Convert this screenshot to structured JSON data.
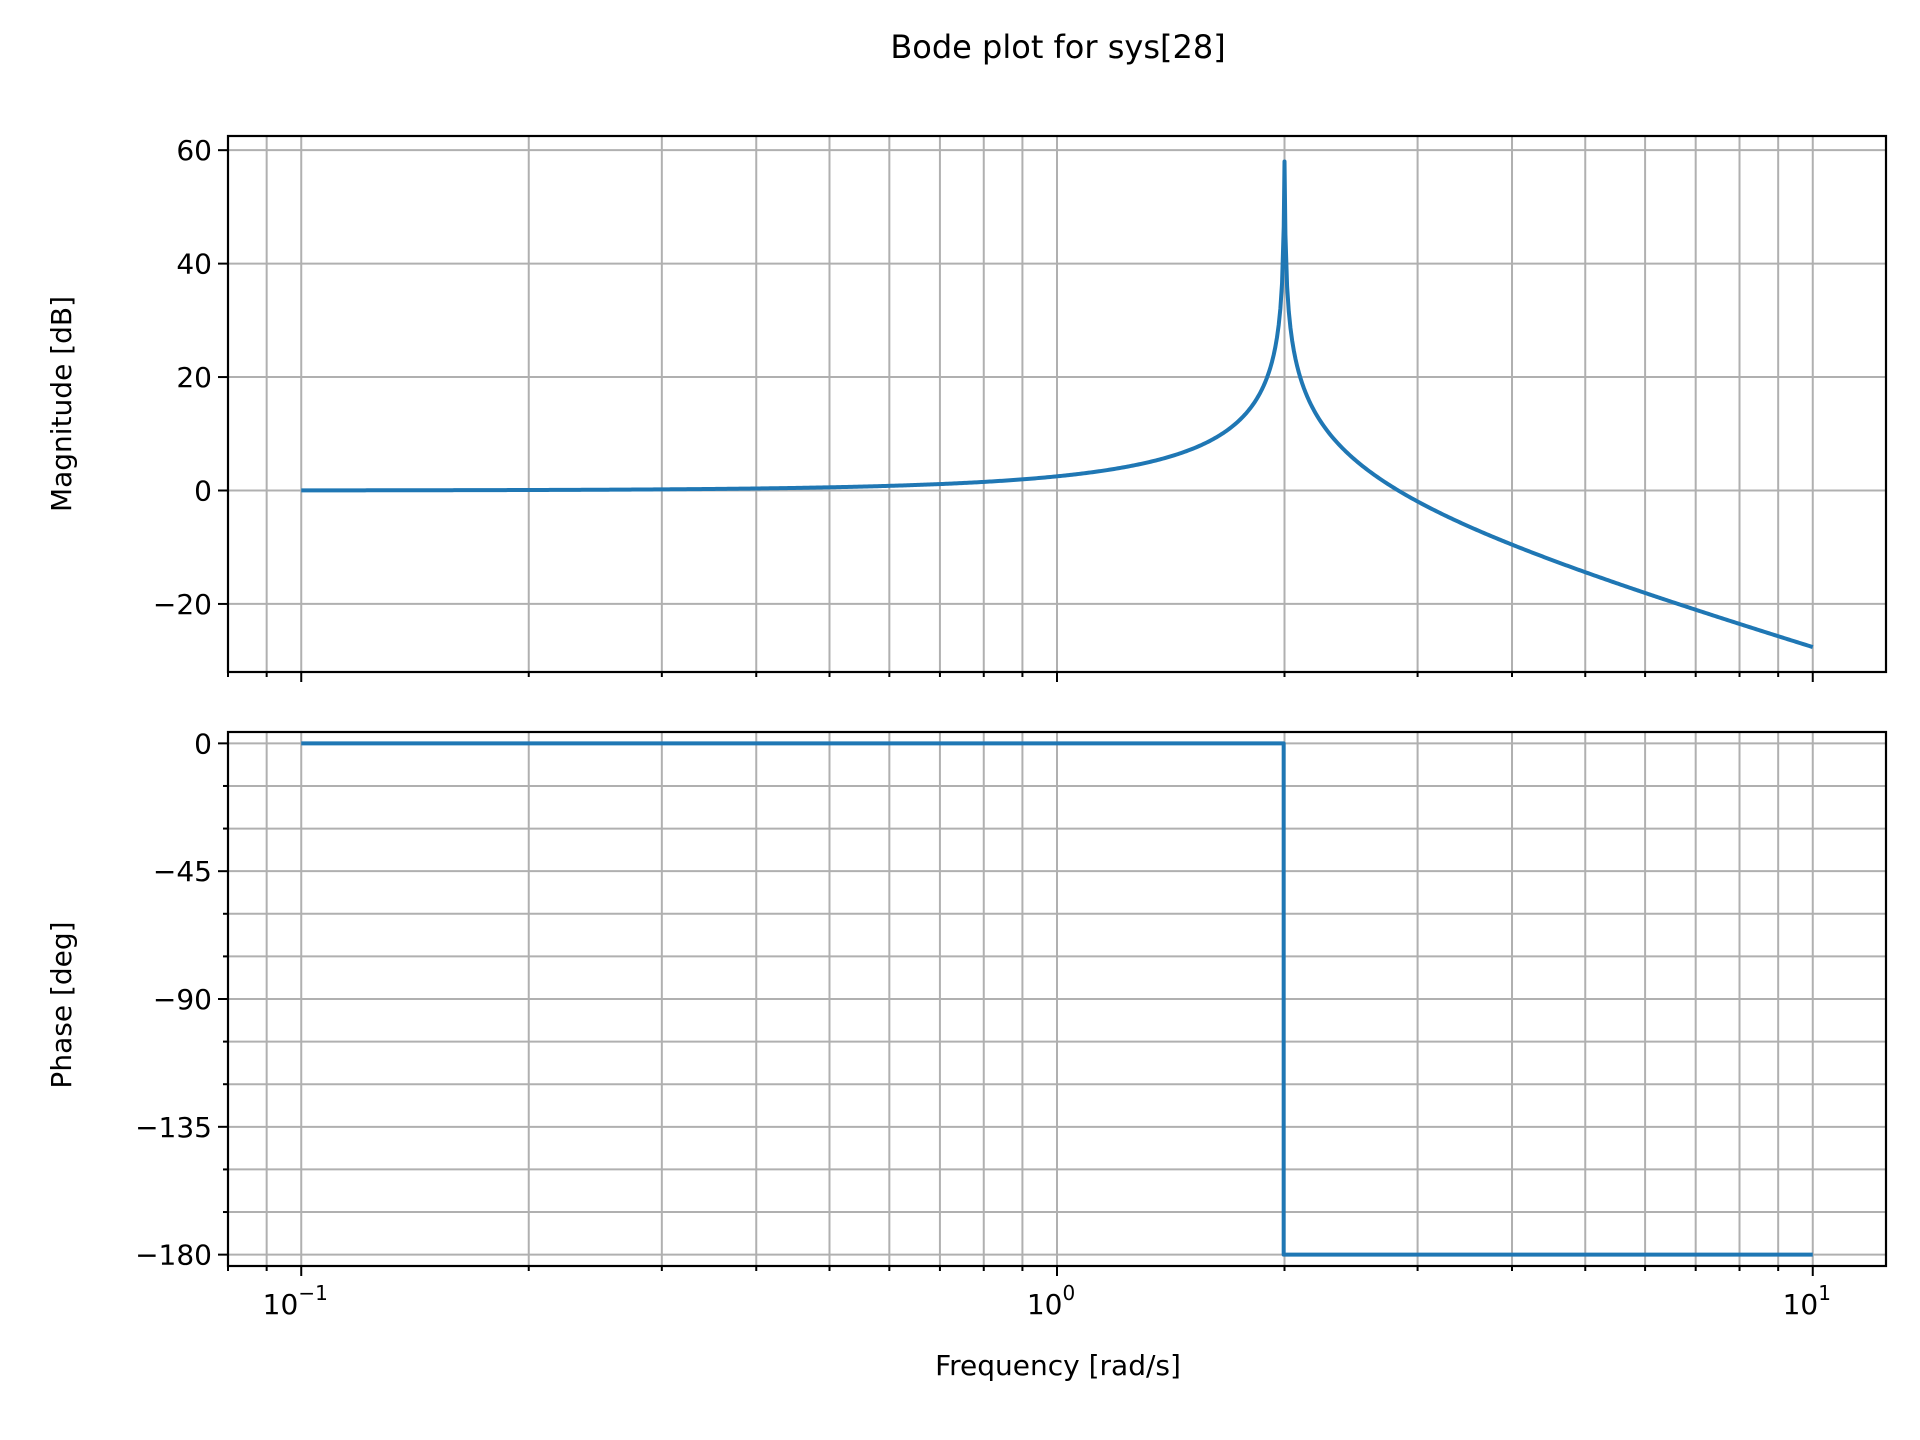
{
  "chart_data": {
    "type": "line",
    "title": "Bode plot for sys[28]",
    "xlabel": "Frequency [rad/s]",
    "xscale": "log",
    "xlim": [
      0.08,
      12.5
    ],
    "x_tick_labels": [
      {
        "value": 0.1,
        "base": "10",
        "exp": "−1"
      },
      {
        "value": 1,
        "base": "10",
        "exp": "0"
      },
      {
        "value": 10,
        "base": "10",
        "exp": "1"
      }
    ],
    "grid": true,
    "series_color": "#1f77b4",
    "subplots": [
      {
        "name": "magnitude",
        "ylabel": "Magnitude [dB]",
        "ylim": [
          -32,
          62.5
        ],
        "y_ticks": [
          60,
          40,
          20,
          0,
          -20
        ],
        "y_tick_labels": [
          "60",
          "40",
          "20",
          "0",
          "−20"
        ],
        "curve": "2nd-order resonance, natural frequency 2 rad/s, peak about 58 dB, 0 dB at 0.1, about -28 dB at 10",
        "points": [
          [
            0.1,
            0.02
          ],
          [
            0.2,
            0.09
          ],
          [
            0.3,
            0.2
          ],
          [
            0.5,
            0.56
          ],
          [
            0.7,
            1.14
          ],
          [
            1.0,
            2.5
          ],
          [
            1.3,
            4.6
          ],
          [
            1.5,
            6.2
          ],
          [
            1.7,
            9.3
          ],
          [
            1.8,
            11.4
          ],
          [
            1.9,
            17.1
          ],
          [
            1.95,
            22.0
          ],
          [
            1.98,
            29.9
          ],
          [
            2.0,
            58.0
          ],
          [
            2.02,
            30.1
          ],
          [
            2.05,
            22.2
          ],
          [
            2.1,
            18.0
          ],
          [
            2.3,
            9.5
          ],
          [
            2.5,
            5.1
          ],
          [
            3.0,
            -1.9
          ],
          [
            4.0,
            -9.5
          ],
          [
            5.0,
            -14.5
          ],
          [
            6.0,
            -18.1
          ],
          [
            8.0,
            -23.5
          ],
          [
            10.0,
            -27.6
          ]
        ]
      },
      {
        "name": "phase",
        "ylabel": "Phase [deg]",
        "ylim": [
          -184,
          4
        ],
        "y_ticks": [
          0,
          -45,
          -90,
          -135,
          -180
        ],
        "y_tick_labels": [
          "0",
          "−45",
          "−90",
          "−135",
          "−180"
        ],
        "y_minor_ticks": [
          -15,
          -30,
          -60,
          -75,
          -105,
          -120,
          -150,
          -165
        ],
        "points": [
          [
            0.1,
            0
          ],
          [
            1.995,
            0
          ],
          [
            1.995,
            -180
          ],
          [
            10.0,
            -180
          ]
        ]
      }
    ]
  }
}
